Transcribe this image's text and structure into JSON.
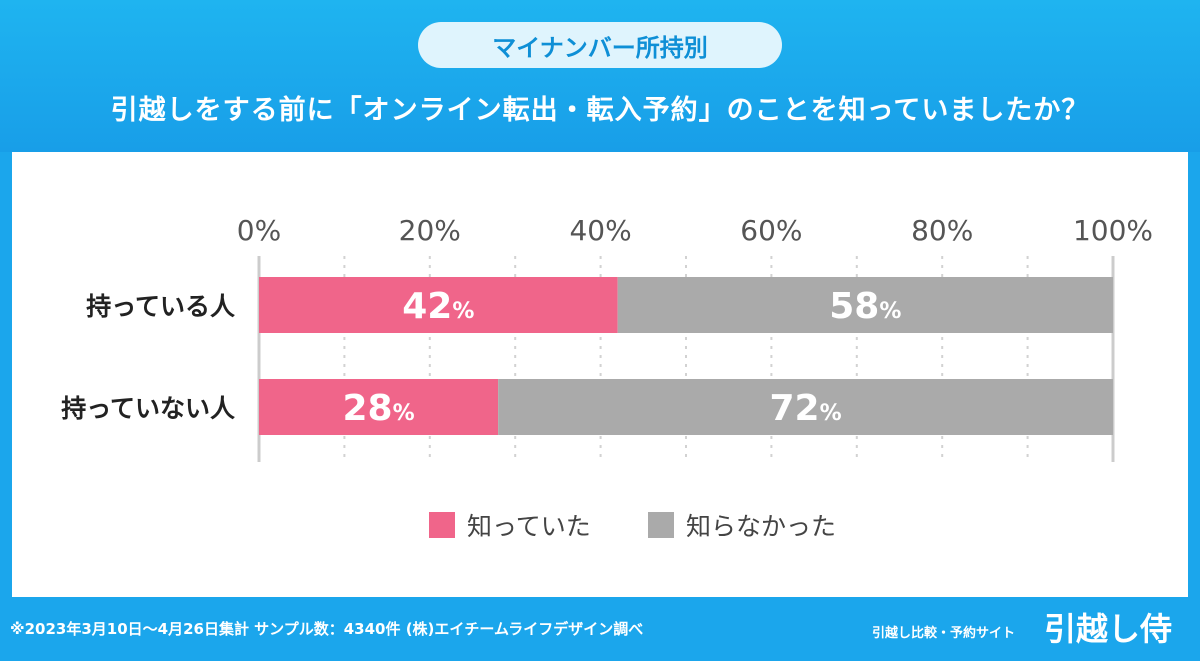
{
  "header": {
    "pill_label": "マイナンバー所持別",
    "question": "引越しをする前に「オンライン転出・転入予約」のことを知っていましたか？"
  },
  "chart_data": {
    "type": "bar",
    "orientation": "horizontal",
    "stacked": true,
    "categories": [
      "持っている人",
      "持っていない人"
    ],
    "series": [
      {
        "name": "知っていた",
        "values": [
          42,
          28
        ],
        "color": "#f0658a"
      },
      {
        "name": "知らなかった",
        "values": [
          58,
          72
        ],
        "color": "#aaaaaa"
      }
    ],
    "value_suffix": "%",
    "xlim": [
      0,
      100
    ],
    "x_ticks": [
      "0%",
      "20%",
      "40%",
      "60%",
      "80%",
      "100%"
    ],
    "grid": true,
    "legend_position": "bottom"
  },
  "footer": {
    "note": "※2023年3月10日〜4月26日集計 サンプル数：4340件 (株)エイチームライフデザイン調べ",
    "brand_sub": "引越し比較・予約サイト",
    "brand": "引越し侍"
  }
}
